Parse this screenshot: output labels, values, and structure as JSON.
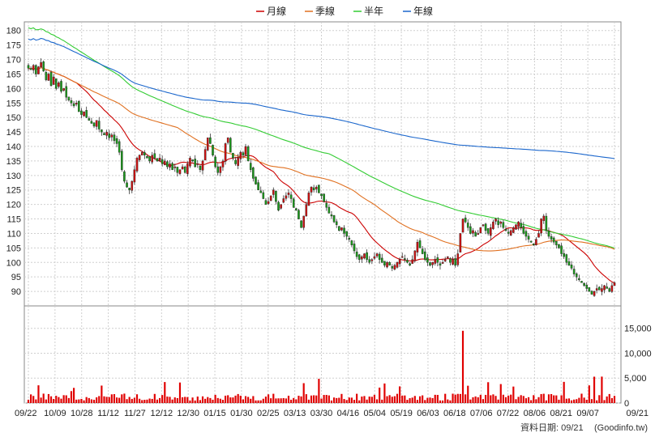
{
  "chart_data": {
    "type": "candlestick",
    "legend": {
      "placement": "top-center",
      "items": [
        {
          "label": "月線",
          "color": "#cc0000"
        },
        {
          "label": "季線",
          "color": "#e07020"
        },
        {
          "label": "半年",
          "color": "#33cc33"
        },
        {
          "label": "年線",
          "color": "#1a66cc"
        }
      ]
    },
    "price_axis": {
      "ylim": [
        85,
        183
      ],
      "ticks": [
        90,
        95,
        100,
        105,
        110,
        115,
        120,
        125,
        130,
        135,
        140,
        145,
        150,
        155,
        160,
        165,
        170,
        175,
        180
      ],
      "side": "left"
    },
    "volume_axis": {
      "ylim": [
        0,
        19500
      ],
      "ticks": [
        0,
        5000,
        10000,
        15000
      ],
      "tick_labels": [
        "0",
        "5,000",
        "10,000",
        "15,000"
      ],
      "side": "right"
    },
    "x_ticks": [
      "09/22",
      "10/09",
      "10/28",
      "11/12",
      "11/27",
      "12/12",
      "12/30",
      "01/15",
      "01/30",
      "02/25",
      "03/13",
      "03/30",
      "04/16",
      "05/04",
      "05/19",
      "06/03",
      "06/18",
      "07/06",
      "07/22",
      "08/06",
      "08/21",
      "09/07",
      "09/21"
    ],
    "closes": [
      167,
      166.5,
      168,
      165,
      167.5,
      169,
      166,
      163,
      165,
      161,
      164,
      160,
      162,
      159,
      160,
      157,
      156,
      155,
      154,
      155,
      152,
      151,
      152,
      150,
      149,
      148,
      147,
      149,
      146,
      145,
      144,
      145,
      143,
      144,
      142,
      141,
      138,
      132,
      128,
      126,
      125,
      128,
      132,
      136,
      137,
      138,
      137,
      136,
      135,
      137,
      136,
      135,
      136,
      134,
      135,
      133,
      134,
      132,
      133,
      131,
      132,
      133,
      131,
      134,
      136,
      135,
      133,
      134,
      132,
      135,
      139,
      143,
      141,
      137,
      133,
      131,
      133,
      135,
      141,
      143,
      138,
      136,
      134,
      136,
      138,
      137,
      140,
      135,
      132,
      129,
      127,
      125,
      124,
      122,
      120,
      121,
      123,
      125,
      121,
      118,
      120,
      122,
      123,
      124,
      122,
      119,
      118,
      115,
      112,
      116,
      120,
      124,
      126,
      125,
      126,
      124,
      123,
      121,
      119,
      117,
      116,
      114,
      113,
      111,
      112,
      110,
      109,
      108,
      106,
      104,
      102,
      101,
      102,
      103,
      101,
      100,
      101,
      102,
      103,
      101,
      100,
      99,
      100,
      99,
      98,
      99,
      100,
      101,
      102,
      101,
      100,
      99,
      101,
      104,
      107,
      105,
      103,
      101,
      100,
      99,
      100,
      101,
      100,
      99,
      100,
      101,
      102,
      100,
      101,
      99,
      103,
      110,
      115,
      114,
      112,
      110,
      111,
      109,
      110,
      112,
      113,
      111,
      110,
      112,
      114,
      115,
      113,
      114,
      112,
      111,
      110,
      111,
      112,
      113,
      114,
      112,
      110,
      109,
      108,
      107,
      106,
      108,
      110,
      115,
      116,
      111,
      109,
      108,
      107,
      106,
      105,
      103,
      102,
      100,
      99,
      98,
      96,
      95,
      94,
      93,
      92,
      91,
      90,
      89,
      90,
      91,
      90.5,
      91,
      92,
      91,
      90,
      92,
      93
    ]
  },
  "footer": {
    "date_label": "資料日期: 09/21",
    "source": "(Goodinfo.tw)"
  }
}
